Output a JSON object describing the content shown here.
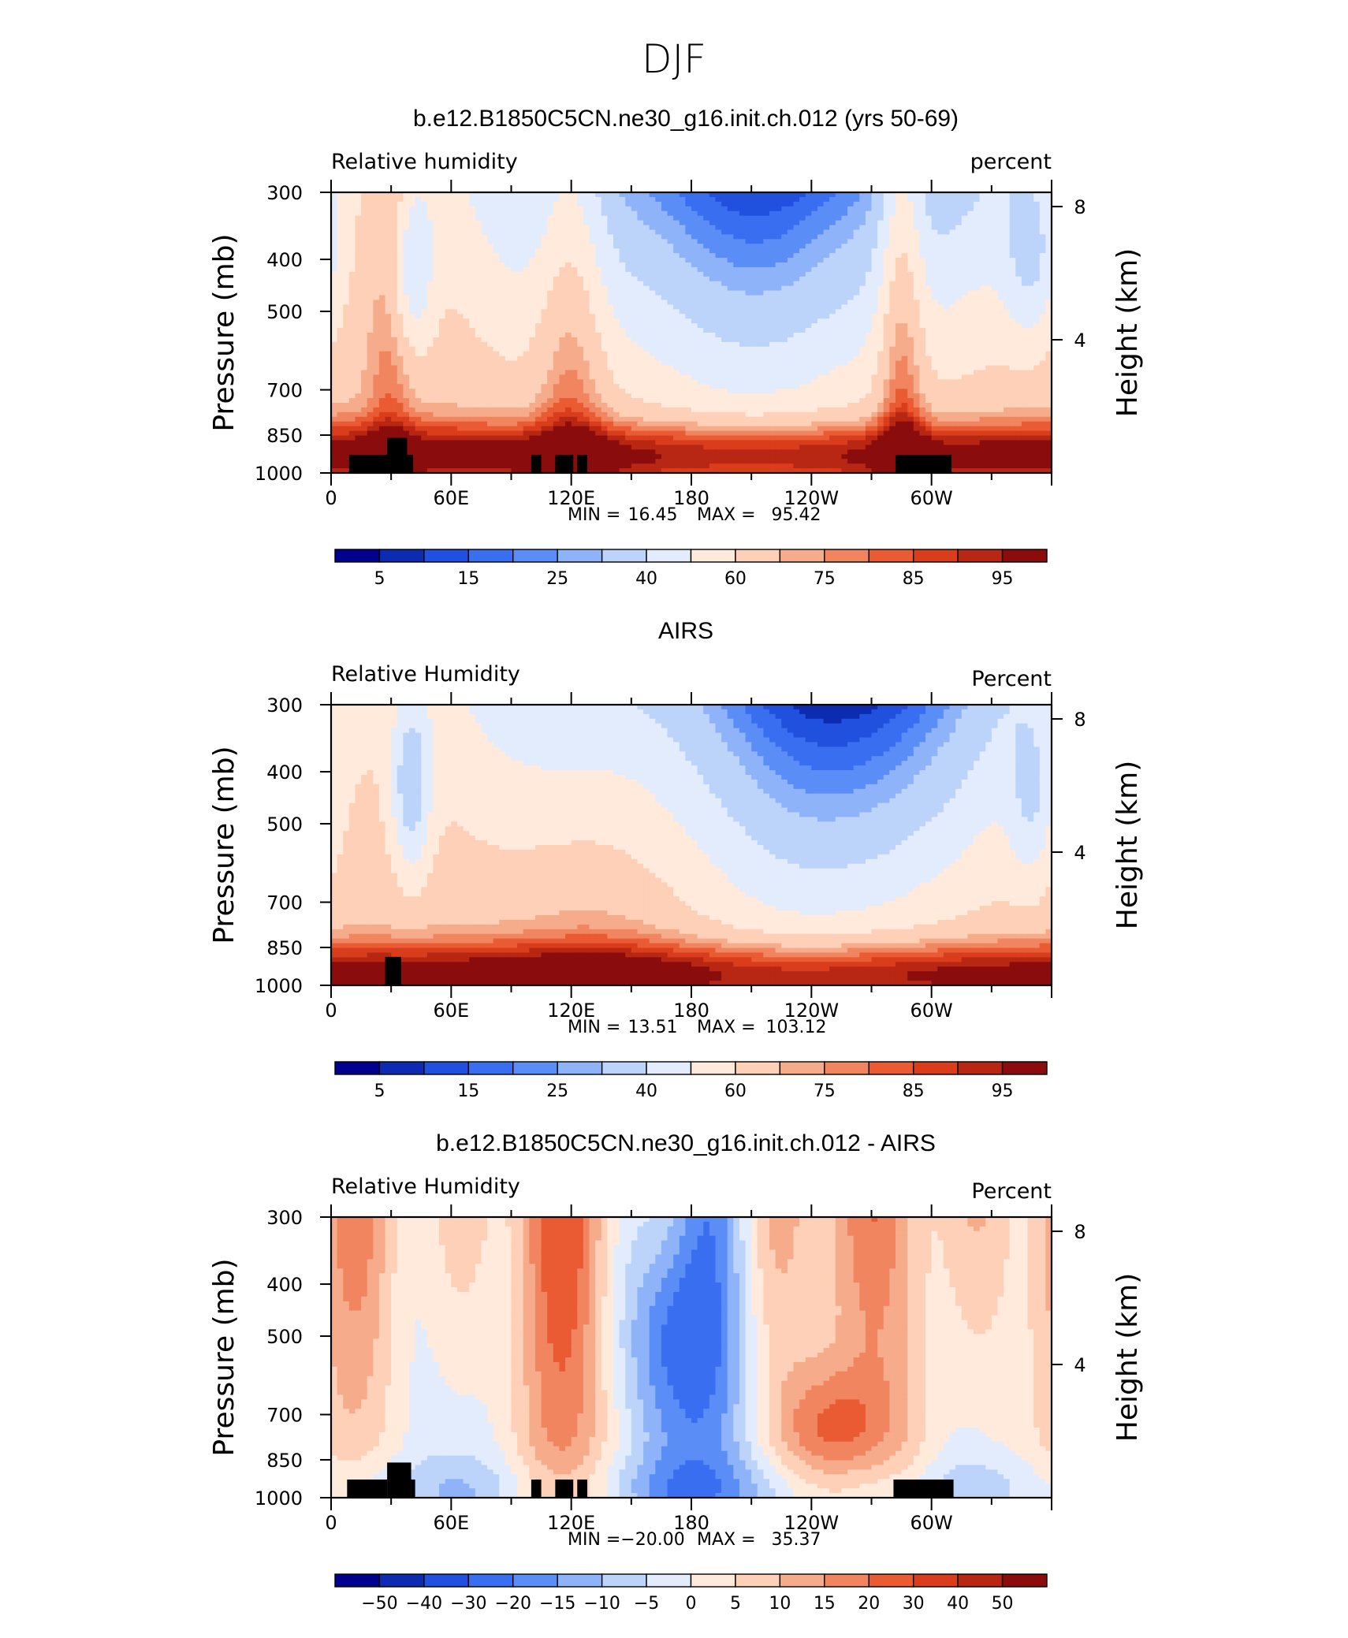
{
  "figure": {
    "title": "DJF"
  },
  "palette": {
    "rh": [
      "#00008f",
      "#0d2bb0",
      "#2150de",
      "#3a6ef0",
      "#5a8ef6",
      "#8fb3f8",
      "#bcd3fa",
      "#e2ecfc",
      "#ffeadc",
      "#fdd0b7",
      "#f6ab8a",
      "#f08560",
      "#ea5a33",
      "#d93d1c",
      "#b82713",
      "#8b0c0c"
    ],
    "diff": [
      "#00008f",
      "#0d2bb0",
      "#2150de",
      "#3a6ef0",
      "#5a8ef6",
      "#8fb3f8",
      "#bcd3fa",
      "#e2ecfc",
      "#ffeadc",
      "#fdd0b7",
      "#f6ab8a",
      "#f08560",
      "#ea5a33",
      "#d93d1c",
      "#b82713",
      "#8b0c0c"
    ]
  },
  "chart_data": [
    {
      "type": "heatmap",
      "title": "b.e12.B1850C5CN.ne30_g16.init.ch.012 (yrs 50-69)",
      "left_label": "Relative  humidity",
      "right_label": "percent",
      "ylabel": "Pressure  (mb)",
      "ylabel_right": "Height  (km)",
      "x_ticks": [
        "0",
        "60E",
        "120E",
        "180",
        "120W",
        "60W"
      ],
      "x_tick_lon": [
        0,
        60,
        120,
        180,
        240,
        300
      ],
      "y_ticks": [
        "300",
        "400",
        "500",
        "700",
        "850",
        "1000"
      ],
      "y_tick_p": [
        300,
        400,
        500,
        700,
        850,
        1000
      ],
      "y_right_ticks": [
        "8",
        "4"
      ],
      "y_right_km": [
        8,
        4
      ],
      "ylim": [
        1000,
        300
      ],
      "xlim": [
        0,
        360
      ],
      "stats": {
        "min_label": "MIN =",
        "min": "16.45",
        "max_label": "MAX =",
        "max": "95.42"
      },
      "colorbar": {
        "labels": [
          "5",
          "15",
          "25",
          "40",
          "60",
          "75",
          "85",
          "95"
        ],
        "label_boxes": [
          1,
          3,
          5,
          7,
          9,
          11,
          13,
          15
        ]
      },
      "levels": [
        0,
        5,
        10,
        15,
        20,
        25,
        30,
        40,
        50,
        60,
        70,
        75,
        80,
        85,
        90,
        95,
        100
      ],
      "field": {
        "base": {
          "kind": "arch",
          "center": 210,
          "width": 40,
          "depth": 55,
          "bottom": 72,
          "top": 48
        },
        "wet_columns": [
          {
            "lon": 120,
            "width": 12,
            "amp": 18
          },
          {
            "lon": 285,
            "width": 8,
            "amp": 22
          },
          {
            "lon": 30,
            "width": 8,
            "amp": 12
          }
        ],
        "dry_columns": [
          {
            "lon": 40,
            "p": 420,
            "width": 8,
            "amp": 25
          },
          {
            "lon": 350,
            "p": 400,
            "width": 10,
            "amp": 20
          }
        ],
        "pbl": {
          "p": 920,
          "amp": 30
        }
      },
      "topography": [
        {
          "lon0": 9,
          "lon1": 28,
          "p": 925
        },
        {
          "lon0": 28,
          "lon1": 38,
          "p": 860
        },
        {
          "lon0": 38,
          "lon1": 41,
          "p": 925
        },
        {
          "lon0": 100,
          "lon1": 105,
          "p": 925
        },
        {
          "lon0": 112,
          "lon1": 121,
          "p": 925
        },
        {
          "lon0": 123,
          "lon1": 128,
          "p": 925
        },
        {
          "lon0": 282,
          "lon1": 310,
          "p": 925
        }
      ]
    },
    {
      "type": "heatmap",
      "title": "AIRS",
      "left_label": "Relative  Humidity",
      "right_label": "Percent",
      "ylabel": "Pressure  (mb)",
      "ylabel_right": "Height  (km)",
      "x_ticks": [
        "0",
        "60E",
        "120E",
        "180",
        "120W",
        "60W"
      ],
      "x_tick_lon": [
        0,
        60,
        120,
        180,
        240,
        300
      ],
      "y_ticks": [
        "300",
        "400",
        "500",
        "700",
        "850",
        "1000"
      ],
      "y_tick_p": [
        300,
        400,
        500,
        700,
        850,
        1000
      ],
      "y_right_ticks": [
        "8",
        "4"
      ],
      "y_right_km": [
        8,
        4
      ],
      "ylim": [
        1000,
        300
      ],
      "xlim": [
        0,
        360
      ],
      "stats": {
        "min_label": "MIN =",
        "min": "13.51",
        "max_label": "MAX =",
        "max": "103.12"
      },
      "colorbar": {
        "labels": [
          "5",
          "15",
          "25",
          "40",
          "60",
          "75",
          "85",
          "95"
        ],
        "label_boxes": [
          1,
          3,
          5,
          7,
          9,
          11,
          13,
          15
        ]
      },
      "levels": [
        0,
        5,
        10,
        15,
        20,
        25,
        30,
        40,
        50,
        60,
        70,
        75,
        80,
        85,
        90,
        95,
        100
      ],
      "field": {
        "base": {
          "kind": "arch",
          "center": 230,
          "width": 45,
          "depth": 50,
          "bottom": 70,
          "top": 46
        },
        "wet_columns": [
          {
            "lon": 130,
            "width": 35,
            "amp": 10
          }
        ],
        "dry_columns": [
          {
            "lon": 40,
            "p": 430,
            "width": 7,
            "amp": 30
          },
          {
            "lon": 350,
            "p": 450,
            "width": 8,
            "amp": 18
          }
        ],
        "pbl": {
          "p": 950,
          "amp": 30
        }
      },
      "topography": [
        {
          "lon0": 27,
          "lon1": 35,
          "p": 885
        }
      ]
    },
    {
      "type": "heatmap",
      "title": "b.e12.B1850C5CN.ne30_g16.init.ch.012 - AIRS",
      "left_label": "Relative  Humidity",
      "right_label": "Percent",
      "ylabel": "Pressure  (mb)",
      "ylabel_right": "Height  (km)",
      "x_ticks": [
        "0",
        "60E",
        "120E",
        "180",
        "120W",
        "60W"
      ],
      "x_tick_lon": [
        0,
        60,
        120,
        180,
        240,
        300
      ],
      "y_ticks": [
        "300",
        "400",
        "500",
        "700",
        "850",
        "1000"
      ],
      "y_tick_p": [
        300,
        400,
        500,
        700,
        850,
        1000
      ],
      "y_right_ticks": [
        "8",
        "4"
      ],
      "y_right_km": [
        8,
        4
      ],
      "ylim": [
        1000,
        300
      ],
      "xlim": [
        0,
        360
      ],
      "stats": {
        "min_label": "MIN =",
        "min": "−20.00",
        "max_label": "MAX =",
        "max": "35.37"
      },
      "colorbar": {
        "labels": [
          "−50",
          "−40",
          "−30",
          "−20",
          "−15",
          "−10",
          "−5",
          "0",
          "5",
          "10",
          "15",
          "20",
          "30",
          "40",
          "50"
        ],
        "label_boxes": [
          1,
          2,
          3,
          4,
          5,
          6,
          7,
          8,
          9,
          10,
          11,
          12,
          13,
          14,
          15
        ]
      },
      "levels": [
        -60,
        -50,
        -40,
        -30,
        -20,
        -15,
        -10,
        -5,
        0,
        5,
        10,
        15,
        20,
        30,
        40,
        50,
        60
      ],
      "field": {
        "base": {
          "kind": "diff"
        },
        "wet_columns": [
          {
            "lon": 110,
            "width": 20,
            "amp": 10
          },
          {
            "lon": 290,
            "width": 15,
            "amp": 10
          }
        ],
        "dry_columns": [
          {
            "lon": 170,
            "p": 500,
            "width": 18,
            "amp": 12
          }
        ],
        "pbl": {
          "p": 960,
          "amp": -6
        }
      },
      "topography": [
        {
          "lon0": 8,
          "lon1": 28,
          "p": 925
        },
        {
          "lon0": 28,
          "lon1": 40,
          "p": 860
        },
        {
          "lon0": 40,
          "lon1": 42,
          "p": 925
        },
        {
          "lon0": 100,
          "lon1": 105,
          "p": 925
        },
        {
          "lon0": 112,
          "lon1": 121,
          "p": 925
        },
        {
          "lon0": 123,
          "lon1": 128,
          "p": 925
        },
        {
          "lon0": 281,
          "lon1": 311,
          "p": 925
        }
      ]
    }
  ]
}
